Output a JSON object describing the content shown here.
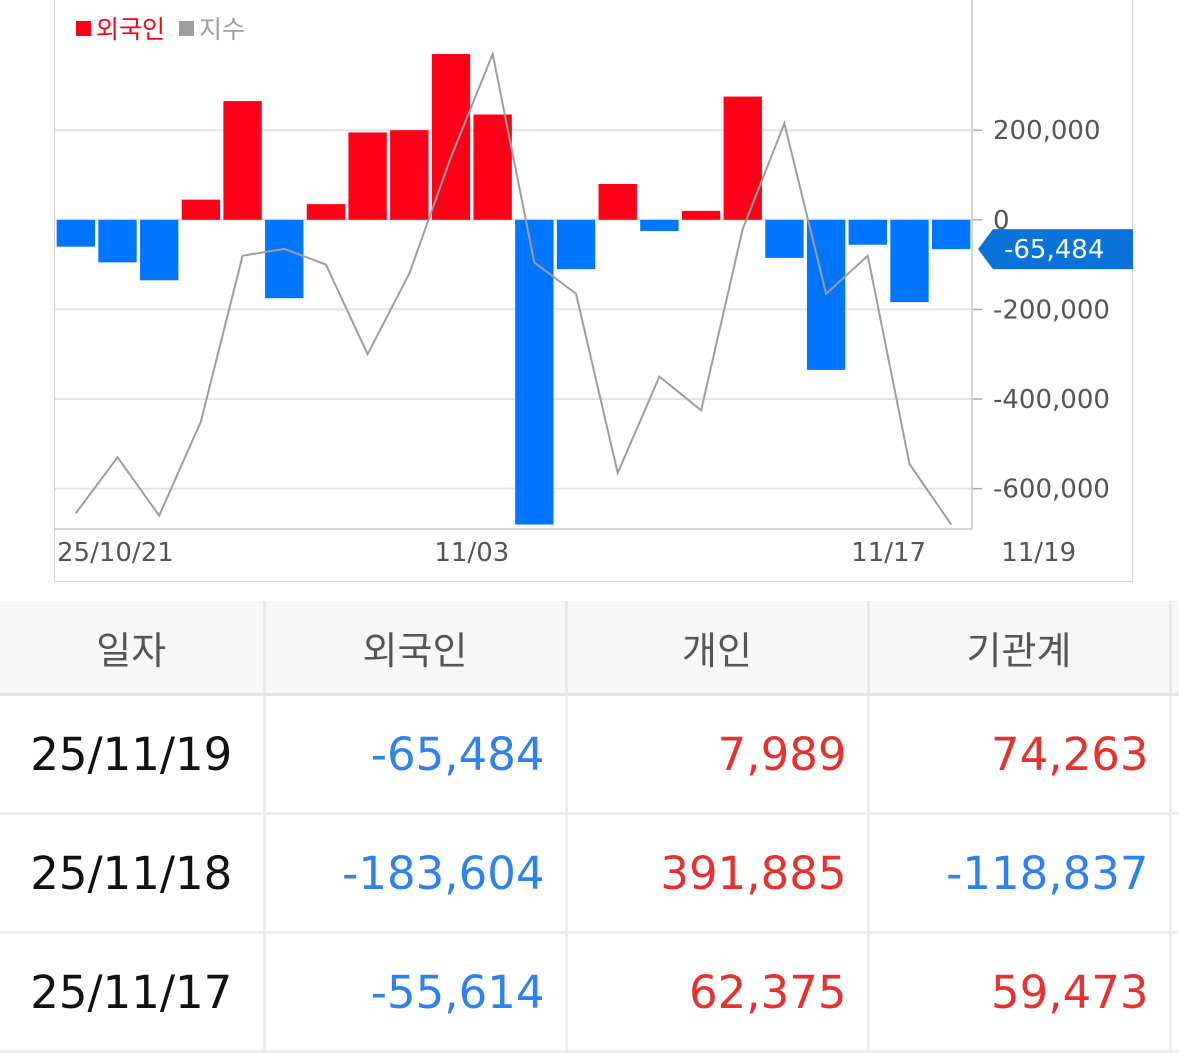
{
  "chart_data": {
    "type": "bar",
    "legend": [
      {
        "name": "외국인",
        "color": "#ff0019"
      },
      {
        "name": "지수",
        "color": "#9d9d9d"
      }
    ],
    "series": [
      {
        "name": "외국인",
        "values": [
          -60000,
          -95000,
          -135000,
          45000,
          265000,
          -175000,
          35000,
          195000,
          200000,
          370000,
          235000,
          -680000,
          -110000,
          80000,
          -25000,
          20000,
          275000,
          -85000,
          -335000,
          -55614,
          -183604,
          -65484
        ]
      },
      {
        "name": "지수",
        "values": [
          -655000,
          -530000,
          -660000,
          -450000,
          -80000,
          -65000,
          -100000,
          -300000,
          -120000,
          140000,
          370000,
          -95000,
          -165000,
          -565000,
          -350000,
          -425000,
          -20000,
          215000,
          -165000,
          -80000,
          -545000,
          -680000
        ]
      }
    ],
    "x_tick_labels": [
      "25/10/21",
      "11/03",
      "11/17",
      "11/19"
    ],
    "y_tick_labels": [
      "200,000",
      "0",
      "-200,000",
      "-400,000",
      "-600,000"
    ],
    "y_ticks": [
      200000,
      0,
      -200000,
      -400000,
      -600000
    ],
    "ylim": [
      -690000,
      495000
    ],
    "current_value_label": "-65,484",
    "positive_color": "#ff0019",
    "negative_color": "#0076ff",
    "line_color": "#9d9d9d",
    "grid": true
  },
  "table": {
    "headers": [
      "일자",
      "외국인",
      "개인",
      "기관계"
    ],
    "rows": [
      {
        "date": "25/11/19",
        "foreign": "-65,484",
        "individual": "7,989",
        "institution": "74,263"
      },
      {
        "date": "25/11/18",
        "foreign": "-183,604",
        "individual": "391,885",
        "institution": "-118,837"
      },
      {
        "date": "25/11/17",
        "foreign": "-55,614",
        "individual": "62,375",
        "institution": "59,473"
      }
    ]
  }
}
